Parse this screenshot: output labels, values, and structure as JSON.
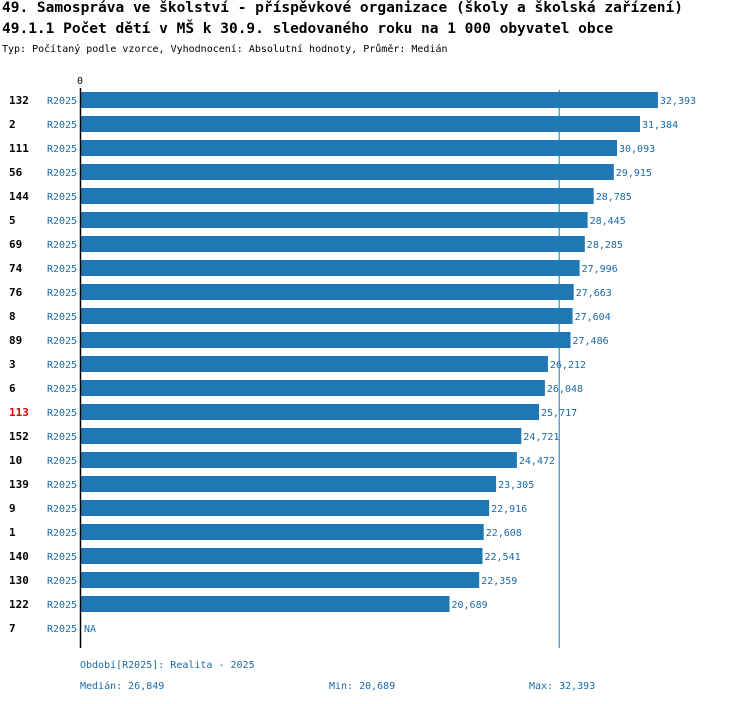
{
  "header": {
    "title": "49. Samospráva ve školství - příspěvkové organizace (školy a školská zařízení)",
    "subtitle_title": "49.1.1 Počet dětí v MŠ k 30.9. sledovaného roku na 1 000 obyvatel obce",
    "description": "Typ: Počítaný podle vzorce, Vyhodnocení: Absolutní hodnoty, Průměr: Medián"
  },
  "colors": {
    "bar": "#1f77b4",
    "label_blue": "#1a6aa8",
    "highlight": "#dd0000",
    "axis": "#000000"
  },
  "chart_data": {
    "type": "bar",
    "orientation": "horizontal",
    "axis_zero_label": "0",
    "xlim": [
      0,
      33800
    ],
    "median_line": 26849,
    "highlight_category": "113",
    "series_label": "R2025",
    "categories": [
      "132",
      "2",
      "111",
      "56",
      "144",
      "5",
      "69",
      "74",
      "76",
      "8",
      "89",
      "3",
      "6",
      "113",
      "152",
      "10",
      "139",
      "9",
      "1",
      "140",
      "130",
      "122",
      "7"
    ],
    "values": [
      32393,
      31384,
      30093,
      29915,
      28785,
      28445,
      28285,
      27996,
      27663,
      27604,
      27486,
      26212,
      26048,
      25717,
      24721,
      24472,
      23305,
      22916,
      22608,
      22541,
      22359,
      20689,
      null
    ],
    "value_labels": [
      "32,393",
      "31,384",
      "30,093",
      "29,915",
      "28,785",
      "28,445",
      "28,285",
      "27,996",
      "27,663",
      "27,604",
      "27,486",
      "26,212",
      "26,048",
      "25,717",
      "24,721",
      "24,472",
      "23,305",
      "22,916",
      "22,608",
      "22,541",
      "22,359",
      "20,689",
      "NA"
    ]
  },
  "footer": {
    "period": "Období[R2025]: Realita - 2025",
    "median": "Medián: 26,849",
    "min": "Min: 20,689",
    "max": "Max: 32,393"
  }
}
